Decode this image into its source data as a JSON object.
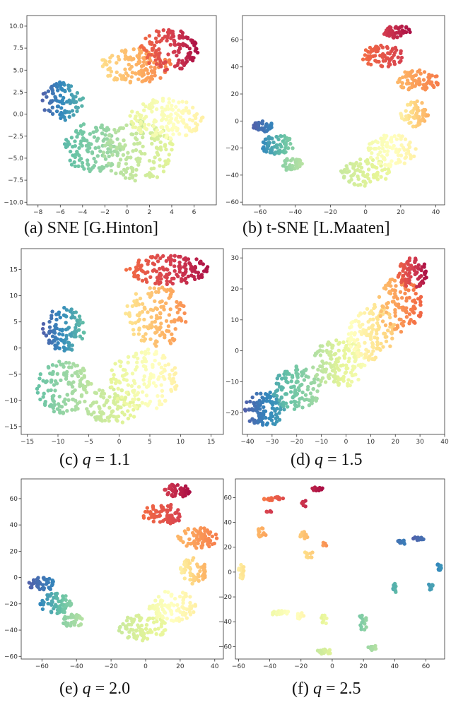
{
  "figure": {
    "panels": [
      {
        "id": "a",
        "caption_label": "(a)",
        "caption_text": "SNE [G.Hinton]",
        "caption_var": "",
        "caption_eq": ""
      },
      {
        "id": "b",
        "caption_label": "(b)",
        "caption_text": "t-SNE [L.Maaten]",
        "caption_var": "",
        "caption_eq": ""
      },
      {
        "id": "c",
        "caption_label": "(c)",
        "caption_text": "",
        "caption_var": "q",
        "caption_eq": " = 1.1"
      },
      {
        "id": "d",
        "caption_label": "(d)",
        "caption_text": "",
        "caption_var": "q",
        "caption_eq": " = 1.5"
      },
      {
        "id": "e",
        "caption_label": "(e)",
        "caption_text": "",
        "caption_var": "q",
        "caption_eq": " = 2.0"
      },
      {
        "id": "f",
        "caption_label": "(f)",
        "caption_text": "",
        "caption_var": "q",
        "caption_eq": " = 2.5"
      }
    ]
  },
  "colors": {
    "spectral": [
      "#5e4fa2",
      "#3288bd",
      "#66c2a5",
      "#abdda4",
      "#e6f598",
      "#ffffbf",
      "#fee08b",
      "#fdae61",
      "#f46d43",
      "#d53e4f",
      "#9e0142"
    ],
    "axes": "#333333"
  },
  "chart_data": [
    {
      "type": "scatter",
      "title": "(a) SNE [G.Hinton]",
      "xlim": [
        -9,
        8
      ],
      "ylim": [
        -10.3,
        11.2
      ],
      "xticks": [
        -8,
        -6,
        -4,
        -2,
        0,
        2,
        4,
        6
      ],
      "xtick_labels": [
        "−8",
        "−6",
        "−4",
        "−2",
        "0",
        "2",
        "4",
        "6"
      ],
      "yticks": [
        -10,
        -7.5,
        -5,
        -2.5,
        0,
        2.5,
        5,
        7.5,
        10
      ],
      "ytick_labels": [
        "−10.0",
        "−7.5",
        "−5.0",
        "−2.5",
        "0.0",
        "2.5",
        "5.0",
        "7.5",
        "10.0"
      ],
      "clusters": [
        {
          "x": -5.8,
          "y": 1.5,
          "rx": 1.9,
          "ry": 2.2,
          "c0": 0.03,
          "c1": 0.18,
          "n": 90
        },
        {
          "x": -3.2,
          "y": -3.8,
          "rx": 2.6,
          "ry": 2.8,
          "c0": 0.18,
          "c1": 0.3,
          "n": 130
        },
        {
          "x": 1.0,
          "y": -4.2,
          "rx": 3.2,
          "ry": 3.5,
          "c0": 0.3,
          "c1": 0.4,
          "n": 150
        },
        {
          "x": 3.5,
          "y": -0.5,
          "rx": 3.3,
          "ry": 2.3,
          "c0": 0.42,
          "c1": 0.55,
          "n": 150
        },
        {
          "x": 0.8,
          "y": 5.5,
          "rx": 3.2,
          "ry": 2.0,
          "c0": 0.6,
          "c1": 0.78,
          "n": 140
        },
        {
          "x": 3.8,
          "y": 7.3,
          "rx": 2.6,
          "ry": 2.4,
          "c0": 0.8,
          "c1": 0.98,
          "n": 130
        }
      ]
    },
    {
      "type": "scatter",
      "title": "(b) t-SNE [L.Maaten]",
      "xlim": [
        -70,
        45
      ],
      "ylim": [
        -62,
        78
      ],
      "xticks": [
        -60,
        -40,
        -20,
        0,
        20,
        40
      ],
      "xtick_labels": [
        "−60",
        "−40",
        "−20",
        "0",
        "20",
        "40"
      ],
      "yticks": [
        -60,
        -40,
        -20,
        0,
        20,
        40,
        60
      ],
      "ytick_labels": [
        "−60",
        "−40",
        "−20",
        "0",
        "20",
        "40",
        "60"
      ],
      "clusters": [
        {
          "x": -58,
          "y": -4,
          "rx": 6,
          "ry": 4,
          "c0": 0.03,
          "c1": 0.1,
          "n": 40
        },
        {
          "x": -50,
          "y": -18,
          "rx": 9,
          "ry": 8,
          "c0": 0.1,
          "c1": 0.25,
          "n": 70
        },
        {
          "x": -42,
          "y": -32,
          "rx": 6,
          "ry": 5,
          "c0": 0.25,
          "c1": 0.32,
          "n": 40
        },
        {
          "x": 0,
          "y": -38,
          "rx": 14,
          "ry": 10,
          "c0": 0.35,
          "c1": 0.42,
          "n": 80
        },
        {
          "x": 15,
          "y": -22,
          "rx": 14,
          "ry": 12,
          "c0": 0.45,
          "c1": 0.55,
          "n": 90
        },
        {
          "x": 28,
          "y": 5,
          "rx": 8,
          "ry": 10,
          "c0": 0.55,
          "c1": 0.7,
          "n": 60
        },
        {
          "x": 30,
          "y": 30,
          "rx": 12,
          "ry": 8,
          "c0": 0.68,
          "c1": 0.78,
          "n": 70
        },
        {
          "x": 10,
          "y": 48,
          "rx": 12,
          "ry": 8,
          "c0": 0.8,
          "c1": 0.9,
          "n": 70
        },
        {
          "x": 18,
          "y": 66,
          "rx": 8,
          "ry": 5,
          "c0": 0.9,
          "c1": 0.98,
          "n": 50
        }
      ]
    },
    {
      "type": "scatter",
      "title": "(c) q = 1.1",
      "xlim": [
        -16,
        17
      ],
      "ylim": [
        -16.5,
        19
      ],
      "xticks": [
        -15,
        -10,
        -5,
        0,
        5,
        10,
        15
      ],
      "xtick_labels": [
        "−15",
        "−10",
        "−5",
        "0",
        "5",
        "10",
        "15"
      ],
      "yticks": [
        -15,
        -10,
        -5,
        0,
        5,
        10,
        15
      ],
      "ytick_labels": [
        "−15",
        "−10",
        "−5",
        "0",
        "5",
        "10",
        "15"
      ],
      "clusters": [
        {
          "x": -9,
          "y": 3.5,
          "rx": 3.5,
          "ry": 4.2,
          "c0": 0.03,
          "c1": 0.2,
          "n": 110
        },
        {
          "x": -9,
          "y": -7.5,
          "rx": 4.5,
          "ry": 5,
          "c0": 0.2,
          "c1": 0.34,
          "n": 130
        },
        {
          "x": -1,
          "y": -11,
          "rx": 4.5,
          "ry": 3.5,
          "c0": 0.32,
          "c1": 0.42,
          "n": 90
        },
        {
          "x": 4,
          "y": -6,
          "rx": 5.5,
          "ry": 6,
          "c0": 0.4,
          "c1": 0.55,
          "n": 140
        },
        {
          "x": 6,
          "y": 6,
          "rx": 5,
          "ry": 6,
          "c0": 0.58,
          "c1": 0.75,
          "n": 140
        },
        {
          "x": 8,
          "y": 15,
          "rx": 7,
          "ry": 2.8,
          "c0": 0.8,
          "c1": 0.98,
          "n": 140
        }
      ]
    },
    {
      "type": "scatter",
      "title": "(d) q = 1.5",
      "xlim": [
        -42,
        40
      ],
      "ylim": [
        -27,
        33
      ],
      "xticks": [
        -40,
        -30,
        -20,
        -10,
        0,
        10,
        20,
        30,
        40
      ],
      "xtick_labels": [
        "−40",
        "−30",
        "−20",
        "−10",
        "0",
        "10",
        "20",
        "30",
        "40"
      ],
      "yticks": [
        -20,
        -10,
        0,
        10,
        20,
        30
      ],
      "ytick_labels": [
        "−20",
        "−10",
        "0",
        "10",
        "20",
        "30"
      ],
      "clusters": [
        {
          "x": -33,
          "y": -19,
          "rx": 8,
          "ry": 6,
          "c0": 0.03,
          "c1": 0.15,
          "n": 100
        },
        {
          "x": -20,
          "y": -12,
          "rx": 10,
          "ry": 7,
          "c0": 0.15,
          "c1": 0.3,
          "n": 120
        },
        {
          "x": -3,
          "y": -4,
          "rx": 11,
          "ry": 8,
          "c0": 0.3,
          "c1": 0.48,
          "n": 140
        },
        {
          "x": 10,
          "y": 6,
          "rx": 10,
          "ry": 9,
          "c0": 0.48,
          "c1": 0.65,
          "n": 140
        },
        {
          "x": 22,
          "y": 15,
          "rx": 9,
          "ry": 9,
          "c0": 0.65,
          "c1": 0.82,
          "n": 110
        },
        {
          "x": 27,
          "y": 25,
          "rx": 6,
          "ry": 5,
          "c0": 0.82,
          "c1": 0.98,
          "n": 80
        }
      ]
    },
    {
      "type": "scatter",
      "title": "(e) q = 2.0",
      "xlim": [
        -72,
        45
      ],
      "ylim": [
        -62,
        75
      ],
      "xticks": [
        -60,
        -40,
        -20,
        0,
        20,
        40
      ],
      "xtick_labels": [
        "−60",
        "−40",
        "−20",
        "0",
        "20",
        "40"
      ],
      "yticks": [
        -60,
        -40,
        -20,
        0,
        20,
        40,
        60
      ],
      "ytick_labels": [
        "−60",
        "−40",
        "−20",
        "0",
        "20",
        "40",
        "60"
      ],
      "clusters": [
        {
          "x": -60,
          "y": -5,
          "rx": 8,
          "ry": 5,
          "c0": 0.03,
          "c1": 0.1,
          "n": 45
        },
        {
          "x": -52,
          "y": -20,
          "rx": 9,
          "ry": 8,
          "c0": 0.1,
          "c1": 0.25,
          "n": 70
        },
        {
          "x": -42,
          "y": -33,
          "rx": 6,
          "ry": 5,
          "c0": 0.25,
          "c1": 0.32,
          "n": 40
        },
        {
          "x": -2,
          "y": -38,
          "rx": 14,
          "ry": 10,
          "c0": 0.35,
          "c1": 0.42,
          "n": 80
        },
        {
          "x": 15,
          "y": -22,
          "rx": 14,
          "ry": 12,
          "c0": 0.45,
          "c1": 0.55,
          "n": 90
        },
        {
          "x": 28,
          "y": 5,
          "rx": 8,
          "ry": 10,
          "c0": 0.55,
          "c1": 0.7,
          "n": 60
        },
        {
          "x": 30,
          "y": 30,
          "rx": 12,
          "ry": 8,
          "c0": 0.68,
          "c1": 0.78,
          "n": 70
        },
        {
          "x": 10,
          "y": 48,
          "rx": 12,
          "ry": 8,
          "c0": 0.8,
          "c1": 0.9,
          "n": 70
        },
        {
          "x": 18,
          "y": 66,
          "rx": 8,
          "ry": 5,
          "c0": 0.9,
          "c1": 0.98,
          "n": 50
        }
      ]
    },
    {
      "type": "scatter",
      "title": "(f) q = 2.5",
      "xlim": [
        -62,
        72
      ],
      "ylim": [
        -70,
        75
      ],
      "xticks": [
        -60,
        -40,
        -20,
        0,
        20,
        40,
        60
      ],
      "xtick_labels": [
        "−60",
        "−40",
        "−20",
        "0",
        "20",
        "40",
        "60"
      ],
      "yticks": [
        -60,
        -40,
        -20,
        0,
        20,
        40,
        60
      ],
      "ytick_labels": [
        "−60",
        "−40",
        "−20",
        "0",
        "20",
        "40",
        "60"
      ],
      "clusters": [
        {
          "x": 55,
          "y": 27,
          "rx": 4,
          "ry": 1.5,
          "c0": 0.03,
          "c1": 0.06,
          "n": 20
        },
        {
          "x": 45,
          "y": 24,
          "rx": 4,
          "ry": 1.5,
          "c0": 0.06,
          "c1": 0.09,
          "n": 15
        },
        {
          "x": 68,
          "y": 4,
          "rx": 2,
          "ry": 3,
          "c0": 0.09,
          "c1": 0.12,
          "n": 12
        },
        {
          "x": 63,
          "y": -12,
          "rx": 2,
          "ry": 2.5,
          "c0": 0.12,
          "c1": 0.15,
          "n": 12
        },
        {
          "x": 40,
          "y": -13,
          "rx": 1.5,
          "ry": 4,
          "c0": 0.15,
          "c1": 0.2,
          "n": 15
        },
        {
          "x": 20,
          "y": -40,
          "rx": 3,
          "ry": 7,
          "c0": 0.22,
          "c1": 0.28,
          "n": 15
        },
        {
          "x": 26,
          "y": -61,
          "rx": 3,
          "ry": 2,
          "c0": 0.28,
          "c1": 0.32,
          "n": 12
        },
        {
          "x": -5,
          "y": -64,
          "rx": 6,
          "ry": 2,
          "c0": 0.34,
          "c1": 0.4,
          "n": 20
        },
        {
          "x": -5,
          "y": -38,
          "rx": 2,
          "ry": 4,
          "c0": 0.4,
          "c1": 0.44,
          "n": 10
        },
        {
          "x": -33,
          "y": -33,
          "rx": 6,
          "ry": 2.5,
          "c0": 0.44,
          "c1": 0.5,
          "n": 18
        },
        {
          "x": -20,
          "y": -35,
          "rx": 3,
          "ry": 3,
          "c0": 0.5,
          "c1": 0.54,
          "n": 12
        },
        {
          "x": -58,
          "y": 0,
          "rx": 2,
          "ry": 6,
          "c0": 0.55,
          "c1": 0.6,
          "n": 15
        },
        {
          "x": -15,
          "y": 14,
          "rx": 3,
          "ry": 3,
          "c0": 0.6,
          "c1": 0.64,
          "n": 10
        },
        {
          "x": -18,
          "y": 30,
          "rx": 3,
          "ry": 3,
          "c0": 0.64,
          "c1": 0.68,
          "n": 12
        },
        {
          "x": -45,
          "y": 32,
          "rx": 3,
          "ry": 4,
          "c0": 0.68,
          "c1": 0.72,
          "n": 14
        },
        {
          "x": -5,
          "y": 22,
          "rx": 1.5,
          "ry": 2,
          "c0": 0.72,
          "c1": 0.75,
          "n": 6
        },
        {
          "x": -37,
          "y": 59,
          "rx": 7,
          "ry": 1.5,
          "c0": 0.78,
          "c1": 0.88,
          "n": 22
        },
        {
          "x": -41,
          "y": 48,
          "rx": 2,
          "ry": 1.5,
          "c0": 0.88,
          "c1": 0.91,
          "n": 6
        },
        {
          "x": -18,
          "y": 55,
          "rx": 1.5,
          "ry": 3,
          "c0": 0.91,
          "c1": 0.94,
          "n": 6
        },
        {
          "x": -10,
          "y": 67,
          "rx": 4,
          "ry": 1.5,
          "c0": 0.94,
          "c1": 0.98,
          "n": 12
        }
      ]
    }
  ]
}
